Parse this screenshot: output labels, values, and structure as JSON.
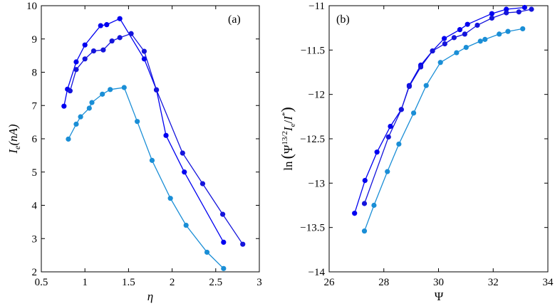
{
  "colors": {
    "series1": "#0000f0",
    "series2": "#1414dc",
    "series3": "#1a8ed6"
  },
  "chart_data": [
    {
      "type": "line",
      "panel_label": "(a)",
      "xlabel": "η",
      "ylabel": "I_e(nA)",
      "ylabel_parts": {
        "main": "I",
        "sub": "e",
        "rest": "(nA)"
      },
      "xlim": [
        0.5,
        3
      ],
      "ylim": [
        2,
        10
      ],
      "xticks": [
        "0.5",
        "1",
        "1.5",
        "2",
        "2.5",
        "3"
      ],
      "yticks": [
        "2",
        "3",
        "4",
        "5",
        "6",
        "7",
        "8",
        "9",
        "10"
      ],
      "grid": false,
      "series": [
        {
          "name": "series1",
          "x": [
            0.76,
            0.8,
            0.9,
            1.0,
            1.18,
            1.25,
            1.4,
            1.68,
            1.82,
            1.93,
            2.14,
            2.59
          ],
          "y": [
            6.98,
            7.49,
            8.31,
            8.82,
            9.4,
            9.43,
            9.61,
            8.4,
            7.47,
            6.1,
            5.0,
            2.89
          ]
        },
        {
          "name": "series2",
          "x": [
            0.83,
            0.9,
            1.0,
            1.1,
            1.21,
            1.31,
            1.4,
            1.53,
            1.68,
            1.82,
            2.12,
            2.35,
            2.58,
            2.81
          ],
          "y": [
            7.44,
            8.08,
            8.4,
            8.64,
            8.67,
            8.94,
            9.04,
            9.16,
            8.63,
            7.47,
            5.57,
            4.65,
            3.73,
            2.83
          ]
        },
        {
          "name": "series3",
          "x": [
            0.81,
            0.9,
            0.95,
            1.05,
            1.08,
            1.2,
            1.29,
            1.45,
            1.6,
            1.77,
            1.98,
            2.16,
            2.4,
            2.59
          ],
          "y": [
            5.99,
            6.44,
            6.66,
            6.92,
            7.09,
            7.34,
            7.48,
            7.54,
            6.52,
            5.35,
            4.21,
            3.4,
            2.59,
            2.1
          ]
        }
      ]
    },
    {
      "type": "line",
      "panel_label": "(b)",
      "xlabel": "Ψ",
      "ylabel": "ln(Ψ^{13/2} I_e / I^*)",
      "ylabel_parts": {
        "ln": "ln",
        "psi": "Ψ",
        "exp": "13/2",
        "i": "I",
        "sub": "e",
        "slash": "/",
        "i2": "I",
        "star": "*"
      },
      "xlim": [
        26,
        34
      ],
      "ylim": [
        -14,
        -11
      ],
      "xticks": [
        "26",
        "28",
        "30",
        "32",
        "34"
      ],
      "yticks": [
        "-14",
        "-13.5",
        "-13",
        "-12.5",
        "-12",
        "-11.5",
        "-11"
      ],
      "grid": false,
      "series": [
        {
          "name": "series1",
          "x": [
            26.93,
            27.31,
            27.75,
            28.24,
            28.64,
            28.93,
            29.35,
            29.78,
            30.21,
            30.78,
            31.06,
            31.95,
            32.48,
            33.15
          ],
          "y": [
            -13.34,
            -12.97,
            -12.65,
            -12.36,
            -12.17,
            -11.9,
            -11.67,
            -11.51,
            -11.37,
            -11.27,
            -11.21,
            -11.09,
            -11.04,
            -11.02
          ]
        },
        {
          "name": "series2",
          "x": [
            27.29,
            28.17,
            28.64,
            28.93,
            29.35,
            29.78,
            30.23,
            30.57,
            30.96,
            31.42,
            31.95,
            32.48,
            32.94,
            33.4
          ],
          "y": [
            -13.23,
            -12.48,
            -12.17,
            -11.91,
            -11.69,
            -11.51,
            -11.43,
            -11.36,
            -11.32,
            -11.22,
            -11.14,
            -11.08,
            -11.07,
            -11.04
          ]
        },
        {
          "name": "series3",
          "x": [
            27.29,
            27.64,
            28.13,
            28.55,
            29.09,
            29.55,
            30.07,
            30.66,
            31.01,
            31.53,
            31.7,
            32.22,
            32.54,
            33.08
          ],
          "y": [
            -13.54,
            -13.25,
            -12.87,
            -12.56,
            -12.21,
            -11.9,
            -11.64,
            -11.53,
            -11.47,
            -11.4,
            -11.38,
            -11.32,
            -11.29,
            -11.26
          ]
        }
      ]
    }
  ]
}
